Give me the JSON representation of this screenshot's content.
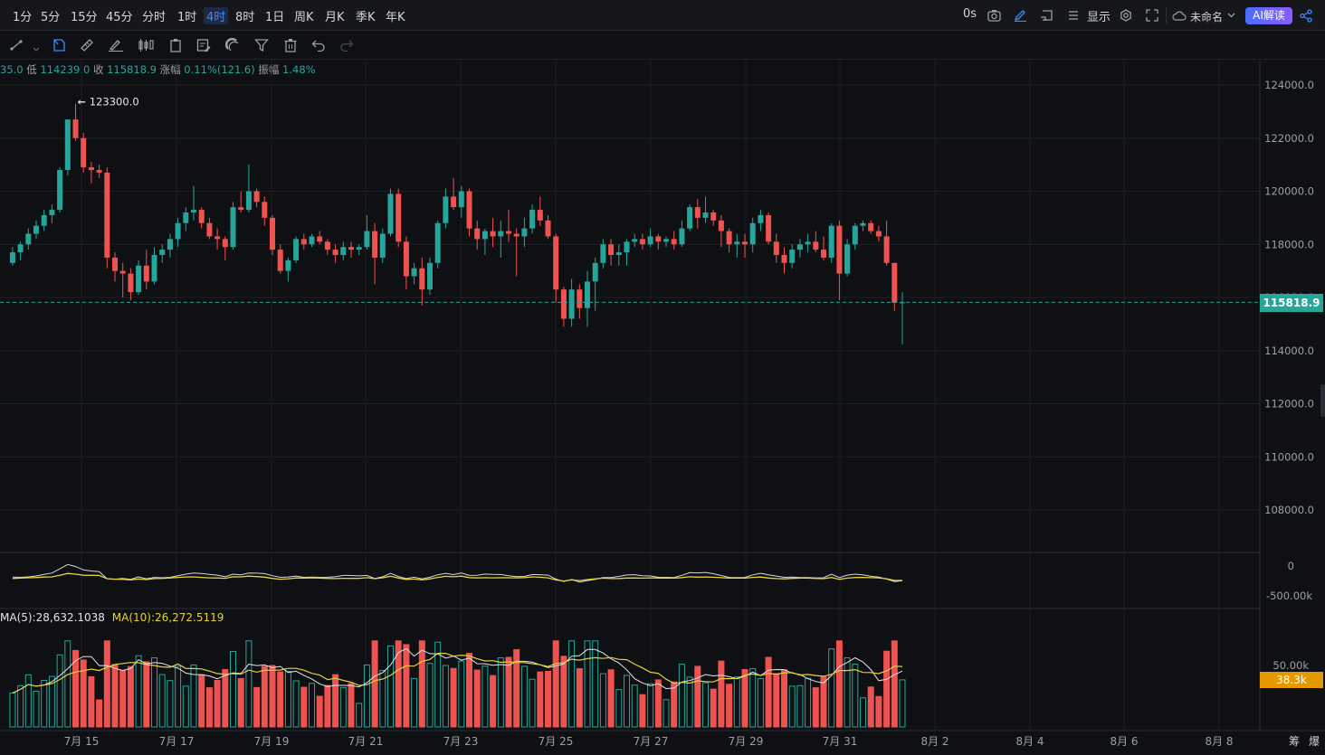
{
  "timeframes": [
    "1分",
    "5分",
    "15分",
    "45分",
    "分时",
    "1时",
    "4时",
    "8时",
    "1日",
    "周K",
    "月K",
    "季K",
    "年K"
  ],
  "active_timeframe": "4时",
  "topbar_right": {
    "interval_label": "0s",
    "display_label": "显示",
    "layout_name": "未命名",
    "ai_label": "AI解读"
  },
  "toolbar_icons": [
    "line-tool-icon",
    "select-icon",
    "ruler-icon",
    "brush-icon",
    "candle-type-icon",
    "clipboard-icon",
    "note-icon",
    "magnet-icon",
    "filter-icon",
    "trash-icon",
    "undo-icon",
    "redo-icon"
  ],
  "ohlc": {
    "open_partial": "35.0",
    "low_label": "低",
    "low": "114239.0",
    "close_label": "收",
    "close": "115818.9",
    "change_label": "涨幅",
    "change": "0.11%(121.6)",
    "amp_label": "振幅",
    "amp": "1.48%"
  },
  "price_axis": {
    "ticks": [
      "124000.0",
      "122000.0",
      "120000.0",
      "118000.0",
      "116000.0",
      "114000.0",
      "112000.0",
      "110000.0",
      "108000.0"
    ],
    "current_price": "115818.9",
    "high_annotation": "123300.0"
  },
  "indicator_axis": [
    "0",
    "-500.00k"
  ],
  "volume": {
    "ma5_label": "MA(5):28,632.1038",
    "ma10_label": "MA(10):26,272.5119",
    "axis_tick": "50.00k",
    "current": "38.3k"
  },
  "x_axis": [
    "7月 15",
    "7月 17",
    "7月 19",
    "7月 21",
    "7月 23",
    "7月 25",
    "7月 27",
    "7月 29",
    "7月 31",
    "8月 2",
    "8月 4",
    "8月 6",
    "8月 8"
  ],
  "bottom_right": [
    "筹",
    "爆"
  ],
  "colors": {
    "up": "#26a69a",
    "down": "#ef5350",
    "ma5": "#e6e6e6",
    "ma10": "#e6d23c",
    "accent": "#3d8bff"
  },
  "chart_data": {
    "type": "candlestick",
    "ylim": [
      106000,
      125000
    ],
    "x_first": "7月 13 20:00",
    "candles": [
      [
        117300,
        117900,
        117200,
        117700
      ],
      [
        117700,
        118100,
        117400,
        118000
      ],
      [
        118000,
        118600,
        117800,
        118400
      ],
      [
        118400,
        118900,
        118200,
        118700
      ],
      [
        118700,
        119300,
        118500,
        119100
      ],
      [
        119100,
        119500,
        118800,
        119300
      ],
      [
        119300,
        120900,
        119200,
        120800
      ],
      [
        120800,
        122700,
        120600,
        122700
      ],
      [
        122700,
        123300,
        121900,
        122000
      ],
      [
        122000,
        122200,
        120700,
        120900
      ],
      [
        120900,
        121100,
        120300,
        120800
      ],
      [
        120800,
        121000,
        120500,
        120700
      ],
      [
        120700,
        120900,
        117100,
        117500
      ],
      [
        117500,
        117700,
        116600,
        117000
      ],
      [
        117000,
        117300,
        116000,
        116900
      ],
      [
        116900,
        117100,
        115900,
        116200
      ],
      [
        116200,
        117400,
        116100,
        117200
      ],
      [
        117200,
        117800,
        116300,
        116600
      ],
      [
        116600,
        117900,
        116500,
        117600
      ],
      [
        117600,
        118000,
        117300,
        117800
      ],
      [
        117800,
        118400,
        117500,
        118200
      ],
      [
        118200,
        119000,
        117900,
        118800
      ],
      [
        118800,
        119400,
        118500,
        119200
      ],
      [
        119200,
        120200,
        118900,
        119300
      ],
      [
        119300,
        119400,
        118600,
        118800
      ],
      [
        118800,
        119000,
        118200,
        118300
      ],
      [
        118300,
        118600,
        117800,
        118200
      ],
      [
        118200,
        118300,
        117400,
        117900
      ],
      [
        117900,
        119600,
        117800,
        119400
      ],
      [
        119400,
        120000,
        119200,
        119300
      ],
      [
        119300,
        121000,
        119200,
        120000
      ],
      [
        120000,
        120100,
        119400,
        119600
      ],
      [
        119600,
        119800,
        118700,
        119000
      ],
      [
        119000,
        119100,
        117600,
        117800
      ],
      [
        117800,
        118000,
        116900,
        117000
      ],
      [
        117000,
        117500,
        116600,
        117400
      ],
      [
        117400,
        118300,
        117300,
        118200
      ],
      [
        118200,
        118400,
        117800,
        118000
      ],
      [
        118000,
        118400,
        117900,
        118300
      ],
      [
        118300,
        118500,
        118000,
        118100
      ],
      [
        118100,
        118200,
        117600,
        117800
      ],
      [
        117800,
        118000,
        117300,
        117600
      ],
      [
        117600,
        118100,
        117400,
        117900
      ],
      [
        117900,
        118100,
        117500,
        117800
      ],
      [
        117800,
        118000,
        117600,
        117900
      ],
      [
        117900,
        119100,
        117800,
        118500
      ],
      [
        118500,
        118800,
        116500,
        117500
      ],
      [
        117500,
        118600,
        117300,
        118400
      ],
      [
        118400,
        120100,
        118300,
        119900
      ],
      [
        119900,
        120100,
        117900,
        118100
      ],
      [
        118100,
        118300,
        116300,
        116800
      ],
      [
        116800,
        117300,
        116500,
        117100
      ],
      [
        117100,
        117500,
        115700,
        116300
      ],
      [
        116300,
        117500,
        116100,
        117300
      ],
      [
        117300,
        118900,
        117100,
        118800
      ],
      [
        118800,
        120100,
        118600,
        119800
      ],
      [
        119800,
        120500,
        119300,
        119400
      ],
      [
        119400,
        120200,
        119000,
        120000
      ],
      [
        120000,
        120100,
        118300,
        118600
      ],
      [
        118600,
        118900,
        117800,
        118200
      ],
      [
        118200,
        118600,
        117600,
        118500
      ],
      [
        118500,
        119000,
        117900,
        118300
      ],
      [
        118300,
        118900,
        117500,
        118500
      ],
      [
        118500,
        119300,
        118100,
        118400
      ],
      [
        118400,
        118600,
        116800,
        118300
      ],
      [
        118300,
        119000,
        117900,
        118600
      ],
      [
        118600,
        119500,
        118400,
        119300
      ],
      [
        119300,
        119800,
        118700,
        118900
      ],
      [
        118900,
        119100,
        118200,
        118300
      ],
      [
        118300,
        118400,
        115800,
        116300
      ],
      [
        116300,
        116400,
        114900,
        115200
      ],
      [
        115200,
        116700,
        114900,
        116300
      ],
      [
        116300,
        116500,
        115200,
        115600
      ],
      [
        115600,
        117000,
        114900,
        116600
      ],
      [
        116600,
        117500,
        115500,
        117300
      ],
      [
        117300,
        118200,
        117100,
        118000
      ],
      [
        118000,
        118200,
        117200,
        117600
      ],
      [
        117600,
        118000,
        117200,
        117700
      ],
      [
        117700,
        118200,
        117200,
        118100
      ],
      [
        118100,
        118400,
        117900,
        118200
      ],
      [
        118200,
        118400,
        117800,
        118000
      ],
      [
        118000,
        118600,
        117900,
        118300
      ],
      [
        118300,
        118400,
        117800,
        118100
      ],
      [
        118100,
        118300,
        117900,
        118200
      ],
      [
        118200,
        118500,
        117800,
        118000
      ],
      [
        118000,
        118900,
        117900,
        118600
      ],
      [
        118600,
        119500,
        118500,
        119400
      ],
      [
        119400,
        119700,
        118600,
        119000
      ],
      [
        119000,
        119800,
        118800,
        119200
      ],
      [
        119200,
        119300,
        118700,
        118900
      ],
      [
        118900,
        119100,
        117900,
        118500
      ],
      [
        118500,
        118600,
        117700,
        118000
      ],
      [
        118000,
        118400,
        117500,
        118100
      ],
      [
        118100,
        118400,
        117500,
        118000
      ],
      [
        118000,
        119000,
        117700,
        118800
      ],
      [
        118800,
        119300,
        118500,
        119100
      ],
      [
        119100,
        119200,
        118000,
        118100
      ],
      [
        118100,
        118400,
        117300,
        117600
      ],
      [
        117600,
        117900,
        116900,
        117300
      ],
      [
        117300,
        118000,
        117100,
        117800
      ],
      [
        117800,
        118200,
        117500,
        118000
      ],
      [
        118000,
        118400,
        117700,
        118100
      ],
      [
        118100,
        118500,
        117700,
        117800
      ],
      [
        117800,
        118300,
        117400,
        117500
      ],
      [
        117500,
        118800,
        117300,
        118700
      ],
      [
        118700,
        118900,
        115900,
        116900
      ],
      [
        116900,
        118200,
        116800,
        118000
      ],
      [
        118000,
        118800,
        117800,
        118700
      ],
      [
        118700,
        118900,
        118500,
        118800
      ],
      [
        118800,
        118900,
        118400,
        118500
      ],
      [
        118500,
        118700,
        118100,
        118300
      ],
      [
        118300,
        118900,
        117200,
        117300
      ],
      [
        117300,
        117300,
        115500,
        115800
      ],
      [
        115800,
        116200,
        114239,
        115818.9
      ]
    ],
    "volume_max": 70000
  }
}
